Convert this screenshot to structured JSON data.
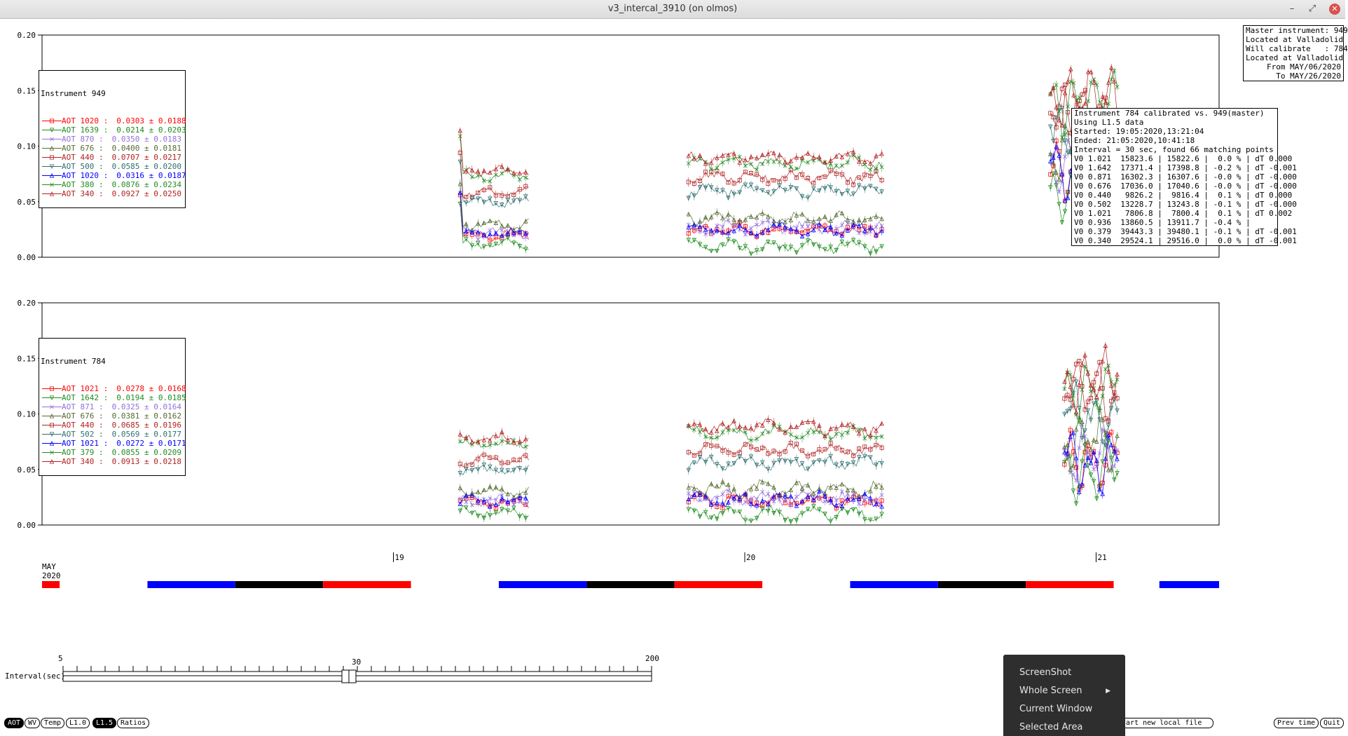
{
  "window": {
    "title": "v3_intercal_3910 (on olmos)"
  },
  "plot_top": {
    "legend_title": "Instrument 949",
    "entries": [
      {
        "label": "AOT 1020 :",
        "value": "0.0303 ± 0.0188",
        "color": "#ff0000",
        "marker": "square"
      },
      {
        "label": "AOT 1639 :",
        "value": "0.0214 ± 0.0203",
        "color": "#1e8c1e",
        "marker": "tri-down"
      },
      {
        "label": "AOT 870 :",
        "value": "0.0350 ± 0.0183",
        "color": "#9370db",
        "marker": "x"
      },
      {
        "label": "AOT 676 :",
        "value": "0.0400 ± 0.0181",
        "color": "#556b2f",
        "marker": "tri-up"
      },
      {
        "label": "AOT 440 :",
        "value": "0.0707 ± 0.0217",
        "color": "#b22222",
        "marker": "square"
      },
      {
        "label": "AOT 500 :",
        "value": "0.0585 ± 0.0200",
        "color": "#2f6f6f",
        "marker": "tri-down"
      },
      {
        "label": "AOT 1020 :",
        "value": "0.0316 ± 0.0187",
        "color": "#0000ff",
        "marker": "tri-up"
      },
      {
        "label": "AOT 380 :",
        "value": "0.0876 ± 0.0234",
        "color": "#228b22",
        "marker": "x"
      },
      {
        "label": "AOT 340 :",
        "value": "0.0927 ± 0.0250",
        "color": "#b22222",
        "marker": "tri-up"
      }
    ]
  },
  "plot_bottom": {
    "legend_title": "Instrument 784",
    "entries": [
      {
        "label": "AOT 1021 :",
        "value": "0.0278 ± 0.0168",
        "color": "#ff0000",
        "marker": "square"
      },
      {
        "label": "AOT 1642 :",
        "value": "0.0194 ± 0.0185",
        "color": "#1e8c1e",
        "marker": "tri-down"
      },
      {
        "label": "AOT 871 :",
        "value": "0.0325 ± 0.0164",
        "color": "#9370db",
        "marker": "x"
      },
      {
        "label": "AOT 676 :",
        "value": "0.0381 ± 0.0162",
        "color": "#556b2f",
        "marker": "tri-up"
      },
      {
        "label": "AOT 440 :",
        "value": "0.0685 ± 0.0196",
        "color": "#b22222",
        "marker": "square"
      },
      {
        "label": "AOT 502 :",
        "value": "0.0569 ± 0.0177",
        "color": "#2f6f6f",
        "marker": "tri-down"
      },
      {
        "label": "AOT 1021 :",
        "value": "0.0272 ± 0.0171",
        "color": "#0000ff",
        "marker": "tri-up"
      },
      {
        "label": "AOT 379 :",
        "value": "0.0855 ± 0.0209",
        "color": "#228b22",
        "marker": "x"
      },
      {
        "label": "AOT 340 :",
        "value": "0.0913 ± 0.0218",
        "color": "#b22222",
        "marker": "tri-up"
      }
    ]
  },
  "master_info": [
    "Master instrument: 949",
    "Located at Valladolid",
    "Will calibrate   : 784",
    "Located at Valladolid",
    "From MAY/06/2020",
    "To MAY/26/2020"
  ],
  "calibration_info": [
    "Instrument 784 calibrated vs. 949(master)",
    "Using L1.5 data",
    "Started: 19:05:2020,13:21:04",
    "Ended: 21:05:2020,10:41:18",
    "Interval = 30 sec, found 66 matching points",
    "V0 1.021  15823.6 | 15822.6 |  0.0 % | dT 0.000",
    "V0 1.642  17371.4 | 17398.8 | -0.2 % | dT -0.001",
    "V0 0.871  16302.3 | 16307.6 | -0.0 % | dT -0.000",
    "V0 0.676  17036.0 | 17040.6 | -0.0 % | dT -0.000",
    "V0 0.440   9826.2 |  9816.4 |  0.1 % | dT 0.000",
    "V0 0.502  13228.7 | 13243.8 | -0.1 % | dT -0.000",
    "V0 1.021   7806.8 |  7800.4 |  0.1 % | dT 0.002",
    "V0 0.936  13860.5 | 13911.7 | -0.4 % |",
    "V0 0.379  39443.3 | 39480.1 | -0.1 % | dT -0.001",
    "V0 0.340  29524.1 | 29516.0 |  0.0 % | dT -0.001"
  ],
  "chart_data": [
    {
      "type": "scatter",
      "title": "Instrument 949",
      "y_ticks": [
        "0.00",
        "0.05",
        "0.10",
        "0.15",
        "0.20"
      ],
      "ylim": [
        0,
        0.2
      ],
      "grid": false,
      "legend_placement": "top-left",
      "x_domain_days": [
        18.0,
        21.35
      ],
      "clusters": [
        {
          "x_range": [
            19.19,
            19.385
          ],
          "levels": [
            0.02,
            0.012,
            0.022,
            0.03,
            0.058,
            0.05,
            0.022,
            0.073,
            0.078
          ],
          "amp": 0.006
        },
        {
          "x_range": [
            19.84,
            20.39
          ],
          "levels": [
            0.025,
            0.01,
            0.027,
            0.035,
            0.072,
            0.06,
            0.025,
            0.085,
            0.09
          ],
          "amp": 0.007
        },
        {
          "x_range": [
            20.87,
            21.06
          ],
          "levels": [
            0.08,
            0.06,
            0.085,
            0.09,
            0.13,
            0.11,
            0.08,
            0.14,
            0.145
          ],
          "amp": 0.03
        }
      ]
    },
    {
      "type": "scatter",
      "title": "Instrument 784",
      "y_ticks": [
        "0.00",
        "0.05",
        "0.10",
        "0.15",
        "0.20"
      ],
      "ylim": [
        0,
        0.2
      ],
      "grid": false,
      "legend_placement": "top-left",
      "x_domain_days": [
        18.0,
        21.35
      ],
      "clusters": [
        {
          "x_range": [
            19.19,
            19.385
          ],
          "levels": [
            0.02,
            0.012,
            0.022,
            0.03,
            0.058,
            0.05,
            0.022,
            0.073,
            0.078
          ],
          "amp": 0.006
        },
        {
          "x_range": [
            19.84,
            20.39
          ],
          "levels": [
            0.022,
            0.01,
            0.024,
            0.033,
            0.068,
            0.056,
            0.023,
            0.083,
            0.088
          ],
          "amp": 0.008
        },
        {
          "x_range": [
            20.91,
            21.06
          ],
          "levels": [
            0.06,
            0.05,
            0.065,
            0.075,
            0.12,
            0.1,
            0.06,
            0.125,
            0.13
          ],
          "amp": 0.03
        }
      ]
    }
  ],
  "timeline": {
    "month": "MAY",
    "year": "2020",
    "day_labels": [
      "19",
      "20",
      "21"
    ],
    "segments": [
      {
        "from": 18.0,
        "to": 18.05,
        "color": "#ff0000"
      },
      {
        "from": 18.3,
        "to": 18.55,
        "color": "#0000ff"
      },
      {
        "from": 18.55,
        "to": 18.8,
        "color": "#000000"
      },
      {
        "from": 18.8,
        "to": 19.05,
        "color": "#ff0000"
      },
      {
        "from": 19.3,
        "to": 19.55,
        "color": "#0000ff"
      },
      {
        "from": 19.55,
        "to": 19.8,
        "color": "#000000"
      },
      {
        "from": 19.8,
        "to": 20.05,
        "color": "#ff0000"
      },
      {
        "from": 20.3,
        "to": 20.55,
        "color": "#0000ff"
      },
      {
        "from": 20.55,
        "to": 20.8,
        "color": "#000000"
      },
      {
        "from": 20.8,
        "to": 21.05,
        "color": "#ff0000"
      },
      {
        "from": 21.18,
        "to": 21.35,
        "color": "#0000ff"
      }
    ]
  },
  "slider": {
    "label": "Interval(sec)",
    "min_label": "5",
    "mid_label": "30",
    "max_label": "200",
    "value": 30
  },
  "footer_buttons": {
    "aot": "AOT",
    "wv": "WV",
    "temp": "Temp",
    "l10": "L1.0",
    "l15": "L1.5",
    "ratios": "Ratios",
    "start_local": "Start new local file",
    "prev_time": "Prev time",
    "quit": "Quit"
  },
  "context_menu": {
    "items": [
      "ScreenShot",
      "Whole Screen",
      "Current Window",
      "Selected Area"
    ]
  }
}
